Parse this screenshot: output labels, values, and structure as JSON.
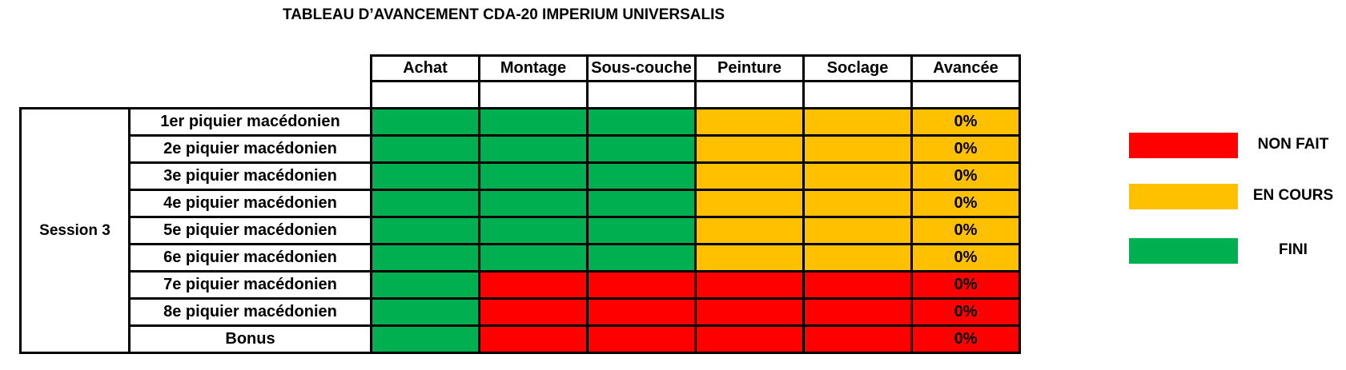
{
  "title": "TABLEAU D’AVANCEMENT CDA-20 IMPERIUM UNIVERSALIS",
  "colors": {
    "non_fait": "#FF0000",
    "en_cours": "#FFC000",
    "fini": "#00B050"
  },
  "table": {
    "columns": [
      "Achat",
      "Montage",
      "Sous-couche",
      "Peinture",
      "Soclage",
      "Avancée"
    ],
    "session": "Session 3",
    "rows": [
      {
        "label": "1er piquier macédonien",
        "statuses": [
          "fini",
          "fini",
          "fini",
          "en_cours",
          "en_cours"
        ],
        "progress": "0%",
        "progress_status": "en_cours"
      },
      {
        "label": "2e piquier macédonien",
        "statuses": [
          "fini",
          "fini",
          "fini",
          "en_cours",
          "en_cours"
        ],
        "progress": "0%",
        "progress_status": "en_cours"
      },
      {
        "label": "3e piquier macédonien",
        "statuses": [
          "fini",
          "fini",
          "fini",
          "en_cours",
          "en_cours"
        ],
        "progress": "0%",
        "progress_status": "en_cours"
      },
      {
        "label": "4e piquier macédonien",
        "statuses": [
          "fini",
          "fini",
          "fini",
          "en_cours",
          "en_cours"
        ],
        "progress": "0%",
        "progress_status": "en_cours"
      },
      {
        "label": "5e piquier macédonien",
        "statuses": [
          "fini",
          "fini",
          "fini",
          "en_cours",
          "en_cours"
        ],
        "progress": "0%",
        "progress_status": "en_cours"
      },
      {
        "label": "6e piquier macédonien",
        "statuses": [
          "fini",
          "fini",
          "fini",
          "en_cours",
          "en_cours"
        ],
        "progress": "0%",
        "progress_status": "en_cours"
      },
      {
        "label": "7e piquier macédonien",
        "statuses": [
          "fini",
          "non_fait",
          "non_fait",
          "non_fait",
          "non_fait"
        ],
        "progress": "0%",
        "progress_status": "non_fait"
      },
      {
        "label": "8e piquier macédonien",
        "statuses": [
          "fini",
          "non_fait",
          "non_fait",
          "non_fait",
          "non_fait"
        ],
        "progress": "0%",
        "progress_status": "non_fait"
      },
      {
        "label": "Bonus",
        "statuses": [
          "fini",
          "non_fait",
          "non_fait",
          "non_fait",
          "non_fait"
        ],
        "progress": "0%",
        "progress_status": "non_fait"
      }
    ]
  },
  "legend": [
    {
      "key": "non_fait",
      "label": "NON FAIT"
    },
    {
      "key": "en_cours",
      "label": "EN COURS"
    },
    {
      "key": "fini",
      "label": "FINI"
    }
  ]
}
